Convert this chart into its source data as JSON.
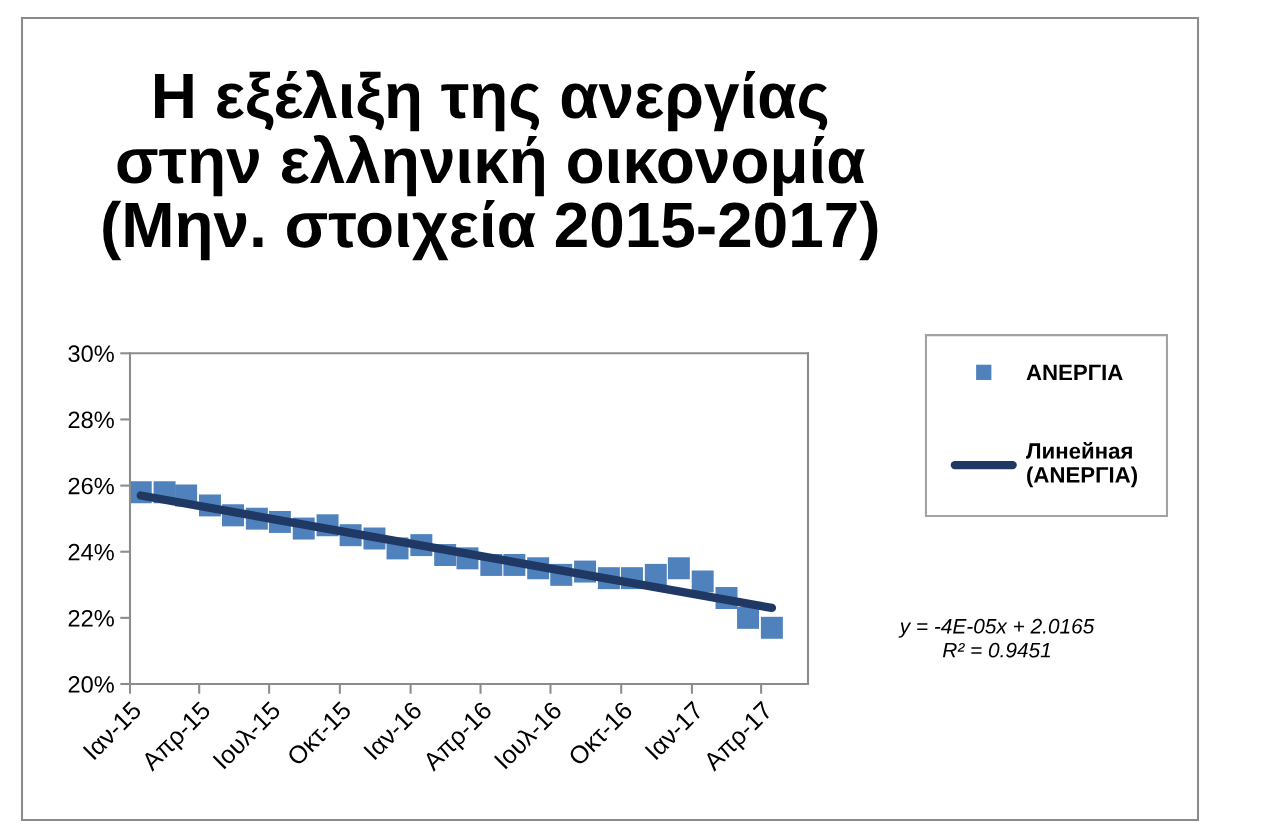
{
  "chart_data": {
    "type": "scatter",
    "title": "Η εξέλιξη της ανεργίας\nστην ελληνική οικονομία\n(Μην. στοιχεία 2015-2017)",
    "series": [
      {
        "name": "ΑΝΕΡΓΙΑ",
        "color": "#4f81bd",
        "marker": "square",
        "x": [
          "2015-01-15",
          "2015-02-15",
          "2015-03-15",
          "2015-04-15",
          "2015-05-15",
          "2015-06-15",
          "2015-07-15",
          "2015-08-15",
          "2015-09-15",
          "2015-10-15",
          "2015-11-15",
          "2015-12-15",
          "2016-01-15",
          "2016-02-15",
          "2016-03-15",
          "2016-04-15",
          "2016-05-15",
          "2016-06-15",
          "2016-07-15",
          "2016-08-15",
          "2016-09-15",
          "2016-10-15",
          "2016-11-15",
          "2016-12-15",
          "2017-01-15",
          "2017-02-15",
          "2017-03-15",
          "2017-04-15"
        ],
        "values": [
          25.8,
          25.8,
          25.7,
          25.4,
          25.1,
          25.0,
          24.9,
          24.7,
          24.8,
          24.5,
          24.4,
          24.1,
          24.2,
          23.9,
          23.8,
          23.6,
          23.6,
          23.5,
          23.3,
          23.4,
          23.2,
          23.2,
          23.3,
          23.5,
          23.1,
          22.6,
          22.0,
          21.7
        ]
      },
      {
        "name": "Линейная (ΑΝΕΡΓΙΑ)",
        "type": "line",
        "color": "#1f3864",
        "marker": "none",
        "line_style": "solid",
        "x": [
          "2015-01-15",
          "2017-04-15"
        ],
        "values": [
          25.7,
          22.3
        ]
      }
    ],
    "xlim": [
      "2015-01",
      "2017-06"
    ],
    "xticks": [
      {
        "value": "2015-01",
        "label": "Ιαν-15"
      },
      {
        "value": "2015-04",
        "label": "Απρ-15"
      },
      {
        "value": "2015-07",
        "label": "Ιουλ-15"
      },
      {
        "value": "2015-10",
        "label": "Οκτ-15"
      },
      {
        "value": "2016-01",
        "label": "Ιαν-16"
      },
      {
        "value": "2016-04",
        "label": "Απρ-16"
      },
      {
        "value": "2016-07",
        "label": "Ιουλ-16"
      },
      {
        "value": "2016-10",
        "label": "Οκτ-16"
      },
      {
        "value": "2017-01",
        "label": "Ιαν-17"
      },
      {
        "value": "2017-04",
        "label": "Απρ-17"
      }
    ],
    "ylim": [
      20,
      30
    ],
    "yticks": [
      {
        "value": 20,
        "label": "20%"
      },
      {
        "value": 22,
        "label": "22%"
      },
      {
        "value": 24,
        "label": "24%"
      },
      {
        "value": 26,
        "label": "26%"
      },
      {
        "value": 28,
        "label": "28%"
      },
      {
        "value": 30,
        "label": "30%"
      }
    ],
    "legend": "right",
    "grid": false,
    "annotations": [
      "y = -4E-05x + 2.0165\nR² = 0.9451"
    ]
  }
}
